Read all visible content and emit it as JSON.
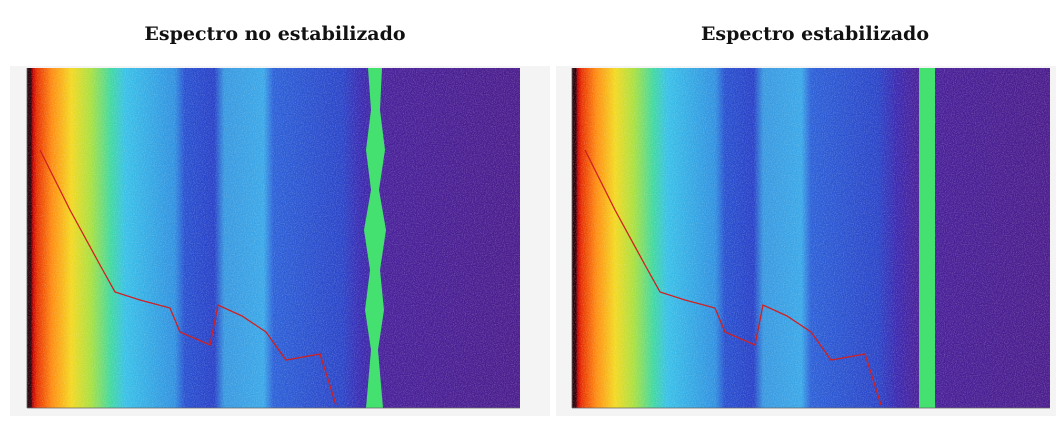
{
  "panels": [
    {
      "title": "Espectro no estabilizado"
    },
    {
      "title": "Espectro estabilizado"
    }
  ]
}
